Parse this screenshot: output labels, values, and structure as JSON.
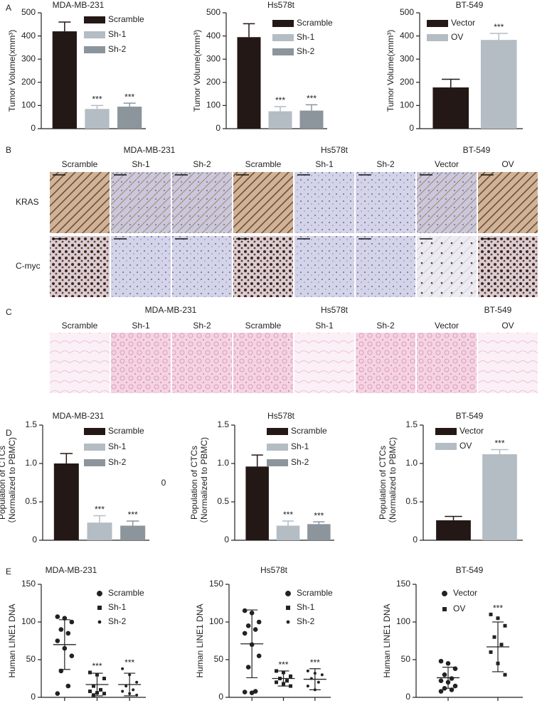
{
  "panel_labels": [
    "A",
    "B",
    "C",
    "D",
    "E"
  ],
  "chart_data": [
    {
      "type": "bar",
      "title": "MDA-MB-231",
      "y_label": [
        "Tumor Volume(xmm³)"
      ],
      "ylim": [
        0,
        500
      ],
      "yticks": [
        0,
        100,
        200,
        300,
        400,
        500
      ],
      "series": [
        {
          "name": "Scramble",
          "color": "#231815",
          "value": 420,
          "error": 40
        },
        {
          "name": "Sh-1",
          "color": "#b4bcc4",
          "value": 85,
          "error": 15,
          "annotation": "***"
        },
        {
          "name": "Sh-2",
          "color": "#8c959c",
          "value": 95,
          "error": 15,
          "annotation": "***"
        }
      ]
    },
    {
      "type": "bar",
      "title": "Hs578t",
      "y_label": [
        "Tumor Volume(xmm³)"
      ],
      "ylim": [
        0,
        500
      ],
      "yticks": [
        0,
        100,
        200,
        300,
        400,
        500
      ],
      "series": [
        {
          "name": "Scramble",
          "color": "#231815",
          "value": 395,
          "error": 58
        },
        {
          "name": "Sh-1",
          "color": "#b4bcc4",
          "value": 75,
          "error": 20,
          "annotation": "***"
        },
        {
          "name": "Sh-2",
          "color": "#8c959c",
          "value": 78,
          "error": 25,
          "annotation": "***"
        }
      ]
    },
    {
      "type": "bar",
      "title": "BT-549",
      "y_label": [
        "Tumor Volume(xmm³)"
      ],
      "ylim": [
        0,
        500
      ],
      "yticks": [
        0,
        100,
        200,
        300,
        400,
        500
      ],
      "series": [
        {
          "name": "Vector",
          "color": "#231815",
          "value": 178,
          "error": 35
        },
        {
          "name": "OV",
          "color": "#b4bcc4",
          "value": 383,
          "error": 28,
          "annotation": "***"
        }
      ]
    },
    {
      "type": "bar",
      "title": "MDA-MB-231",
      "y_label": [
        "Population of CTCs",
        "（Normalized to PBMC)"
      ],
      "ylim": [
        0,
        1.5
      ],
      "yticks": [
        0,
        0.5,
        {
          "value": 1,
          "label": "1.0"
        },
        1.5
      ],
      "note": "0",
      "series": [
        {
          "name": "Scramble",
          "color": "#231815",
          "value": 1.0,
          "error": 0.13
        },
        {
          "name": "Sh-1",
          "color": "#b4bcc4",
          "value": 0.23,
          "error": 0.09,
          "annotation": "***"
        },
        {
          "name": "Sh-2",
          "color": "#8c959c",
          "value": 0.19,
          "error": 0.06,
          "annotation": "***"
        }
      ]
    },
    {
      "type": "bar",
      "title": "Hs578t",
      "y_label": [
        "Population of CTCs",
        "（Normalized to PBMC)"
      ],
      "ylim": [
        0,
        1.5
      ],
      "yticks": [
        0,
        0.5,
        {
          "value": 1,
          "label": "1.0"
        },
        1.5
      ],
      "series": [
        {
          "name": "Scramble",
          "color": "#231815",
          "value": 0.96,
          "error": 0.15
        },
        {
          "name": "Sh-1",
          "color": "#b4bcc4",
          "value": 0.19,
          "error": 0.06,
          "annotation": "***"
        },
        {
          "name": "Sh-2",
          "color": "#8c959c",
          "value": 0.21,
          "error": 0.03,
          "annotation": "***"
        }
      ]
    },
    {
      "type": "bar",
      "title": "BT-549",
      "y_label": [
        "Population of CTCs",
        "（Normalized to PBMC)"
      ],
      "ylim": [
        0,
        1.5
      ],
      "yticks": [
        0,
        0.5,
        {
          "value": 1,
          "label": "1.0"
        },
        1.5
      ],
      "series": [
        {
          "name": "Vector",
          "color": "#231815",
          "value": 0.26,
          "error": 0.05
        },
        {
          "name": "OV",
          "color": "#b4bcc4",
          "value": 1.12,
          "error": 0.06,
          "annotation": "***"
        }
      ]
    },
    {
      "type": "dotplot",
      "title": "MDA-MB-231",
      "y_label": [
        "Human LINE1 DNA"
      ],
      "ylim": [
        0,
        150
      ],
      "yticks": [
        0,
        50,
        100,
        150
      ],
      "series": [
        {
          "name": "Scramble",
          "marker": "circle",
          "values": [
            107,
            105,
            100,
            90,
            85,
            75,
            65,
            55,
            35,
            15,
            5
          ],
          "mean": 70,
          "sd": 33
        },
        {
          "name": "Sh-1",
          "marker": "square",
          "values": [
            33,
            30,
            25,
            15,
            10,
            8,
            6,
            5,
            3
          ],
          "mean": 17,
          "sd": 15,
          "annotation": "***"
        },
        {
          "name": "Sh-2",
          "marker": "dot",
          "values": [
            38,
            30,
            20,
            15,
            10,
            8,
            5,
            3
          ],
          "mean": 17,
          "sd": 15,
          "annotation": "***"
        }
      ]
    },
    {
      "type": "dotplot",
      "title": "Hs578t",
      "y_label": [
        "Human LINE1 DNA"
      ],
      "ylim": [
        0,
        150
      ],
      "yticks": [
        0,
        50,
        100,
        150
      ],
      "series": [
        {
          "name": "Scramble",
          "marker": "circle",
          "values": [
            115,
            112,
            100,
            95,
            90,
            85,
            70,
            55,
            40,
            8,
            7,
            6
          ],
          "mean": 71,
          "sd": 45
        },
        {
          "name": "Sh-1",
          "marker": "square",
          "values": [
            35,
            33,
            28,
            25,
            22,
            20,
            18,
            15
          ],
          "mean": 25,
          "sd": 10,
          "annotation": "***"
        },
        {
          "name": "Sh-2",
          "marker": "dot",
          "values": [
            35,
            32,
            30,
            25,
            20,
            15,
            10
          ],
          "mean": 24,
          "sd": 14,
          "annotation": "***"
        }
      ]
    },
    {
      "type": "dotplot",
      "title": "BT-549",
      "y_label": [
        "Human LINE1 DNA"
      ],
      "ylim": [
        0,
        150
      ],
      "yticks": [
        0,
        50,
        100,
        150
      ],
      "series": [
        {
          "name": "Vector",
          "marker": "circle",
          "values": [
            48,
            45,
            38,
            30,
            25,
            22,
            20,
            15,
            12,
            10,
            8
          ],
          "mean": 26,
          "sd": 14
        },
        {
          "name": "OV",
          "marker": "square",
          "values": [
            110,
            105,
            95,
            80,
            70,
            60,
            45,
            30
          ],
          "mean": 67,
          "sd": 33,
          "annotation": "***"
        }
      ]
    }
  ],
  "image_panels": [
    {
      "group_titles": [
        "MDA-MB-231",
        "Hs578t",
        "BT-549"
      ],
      "columns": [
        "Scramble",
        "Sh-1",
        "Sh-2",
        "Scramble",
        "Sh-1",
        "Sh-2",
        "Vector",
        "OV"
      ],
      "rows": [
        "KRAS",
        "C-myc"
      ]
    },
    {
      "group_titles": [
        "MDA-MB-231",
        "Hs578t",
        "BT-549"
      ],
      "columns": [
        "Scramble",
        "Sh-1",
        "Sh-2",
        "Scramble",
        "Sh-1",
        "Sh-2",
        "Vector",
        "OV"
      ]
    }
  ]
}
